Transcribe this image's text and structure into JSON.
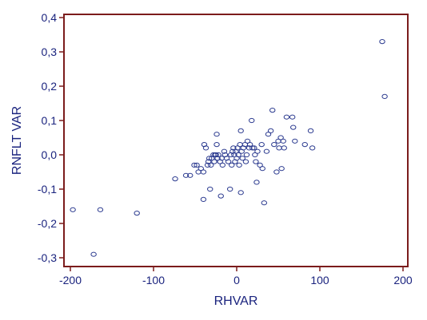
{
  "chart_data": {
    "type": "scatter",
    "title": "",
    "xlabel": "RHVAR",
    "ylabel": "RNFLT VAR",
    "xlim": [
      -200,
      200
    ],
    "ylim": [
      -0.3,
      0.4
    ],
    "xticks": [
      -200,
      -100,
      0,
      100,
      200
    ],
    "xtick_labels": [
      "-200",
      "-100",
      "0",
      "100",
      "200"
    ],
    "yticks": [
      -0.3,
      -0.2,
      -0.1,
      0.0,
      0.1,
      0.2,
      0.3,
      0.4
    ],
    "ytick_labels": [
      "-0,3",
      "-0,2",
      "-0,1",
      "0,0",
      "0,1",
      "0,2",
      "0,3",
      "0,4"
    ],
    "grid": false,
    "frame_color": "#7b1c1c",
    "marker_color": "#2b3a8f",
    "label_color": "#1a237e",
    "points": [
      [
        -197,
        -0.16
      ],
      [
        -164,
        -0.16
      ],
      [
        -172,
        -0.29
      ],
      [
        -120,
        -0.17
      ],
      [
        -74,
        -0.07
      ],
      [
        -61,
        -0.06
      ],
      [
        -56,
        -0.06
      ],
      [
        -51,
        -0.03
      ],
      [
        -48,
        -0.03
      ],
      [
        -46,
        -0.05
      ],
      [
        -43,
        -0.04
      ],
      [
        -40,
        -0.05
      ],
      [
        -40,
        -0.13
      ],
      [
        -39,
        0.03
      ],
      [
        -37,
        0.02
      ],
      [
        -35,
        -0.03
      ],
      [
        -34,
        -0.02
      ],
      [
        -33,
        -0.01
      ],
      [
        -32,
        -0.1
      ],
      [
        -31,
        -0.03
      ],
      [
        -30,
        -0.01
      ],
      [
        -28,
        0.0
      ],
      [
        -27,
        -0.02
      ],
      [
        -26,
        0.0
      ],
      [
        -25,
        0.0
      ],
      [
        -24,
        0.06
      ],
      [
        -24,
        0.03
      ],
      [
        -23,
        -0.01
      ],
      [
        -22,
        0.0
      ],
      [
        -20,
        -0.02
      ],
      [
        -19,
        -0.12
      ],
      [
        -18,
        -0.01
      ],
      [
        -17,
        -0.03
      ],
      [
        -15,
        0.01
      ],
      [
        -14,
        0.0
      ],
      [
        -12,
        -0.01
      ],
      [
        -10,
        -0.02
      ],
      [
        -8,
        -0.1
      ],
      [
        -7,
        0.0
      ],
      [
        -6,
        -0.03
      ],
      [
        -5,
        0.01
      ],
      [
        -4,
        0.02
      ],
      [
        -3,
        0.0
      ],
      [
        -2,
        -0.02
      ],
      [
        -1,
        0.01
      ],
      [
        0,
        -0.01
      ],
      [
        1,
        0.02
      ],
      [
        2,
        0.0
      ],
      [
        3,
        -0.03
      ],
      [
        4,
        0.03
      ],
      [
        5,
        0.07
      ],
      [
        5,
        -0.11
      ],
      [
        6,
        0.01
      ],
      [
        7,
        -0.01
      ],
      [
        8,
        0.02
      ],
      [
        10,
        0.03
      ],
      [
        11,
        -0.02
      ],
      [
        12,
        0.0
      ],
      [
        13,
        0.04
      ],
      [
        15,
        0.02
      ],
      [
        16,
        0.03
      ],
      [
        18,
        0.1
      ],
      [
        19,
        0.02
      ],
      [
        21,
        0.02
      ],
      [
        22,
        0.0
      ],
      [
        23,
        -0.02
      ],
      [
        24,
        -0.08
      ],
      [
        25,
        0.01
      ],
      [
        28,
        -0.03
      ],
      [
        30,
        0.03
      ],
      [
        31,
        -0.04
      ],
      [
        33,
        -0.14
      ],
      [
        36,
        0.01
      ],
      [
        38,
        0.06
      ],
      [
        41,
        0.07
      ],
      [
        43,
        0.13
      ],
      [
        45,
        0.03
      ],
      [
        48,
        -0.05
      ],
      [
        50,
        0.04
      ],
      [
        51,
        0.02
      ],
      [
        53,
        0.05
      ],
      [
        54,
        -0.04
      ],
      [
        56,
        0.04
      ],
      [
        57,
        0.02
      ],
      [
        60,
        0.11
      ],
      [
        67,
        0.11
      ],
      [
        68,
        0.08
      ],
      [
        70,
        0.04
      ],
      [
        82,
        0.03
      ],
      [
        89,
        0.07
      ],
      [
        91,
        0.02
      ],
      [
        175,
        0.33
      ],
      [
        178,
        0.17
      ]
    ]
  }
}
